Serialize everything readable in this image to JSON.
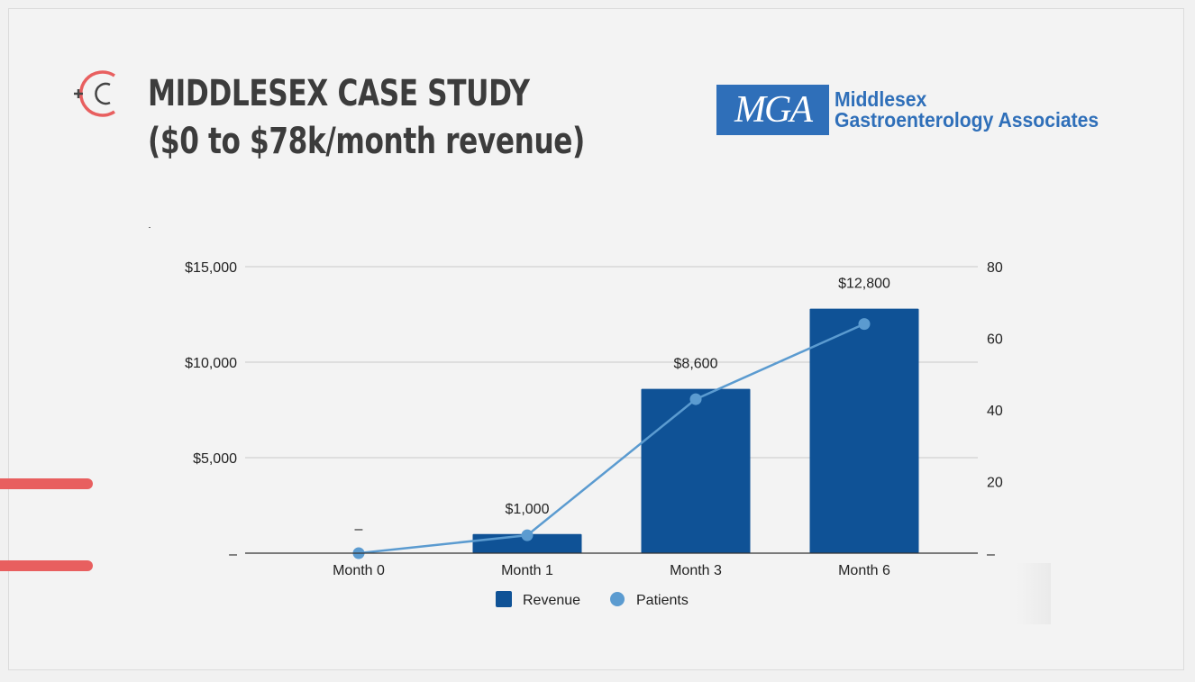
{
  "header": {
    "title_line1": "MIDDLESEX CASE STUDY",
    "title_line2": "($0 to $78k/month revenue)"
  },
  "partner_logo": {
    "mark": "MGA",
    "name_line1": "Middlesex",
    "name_line2": "Gastroenterology Associates",
    "color": "#2f6fb9"
  },
  "brand": {
    "icon": "plus-c-logo-icon",
    "accent_color": "#e85f5f"
  },
  "chart_data": {
    "type": "bar",
    "categories": [
      "Month 0",
      "Month 1",
      "Month 3",
      "Month 6"
    ],
    "series": [
      {
        "name": "Revenue",
        "type": "bar",
        "axis": "left",
        "values": [
          0,
          1000,
          8600,
          12800
        ],
        "data_labels": [
          "–",
          "$1,000",
          "$8,600",
          "$12,800"
        ],
        "color": "#0f5296"
      },
      {
        "name": "Patients",
        "type": "line",
        "axis": "right",
        "values": [
          0,
          5,
          43,
          64
        ],
        "color": "#5b9bd0"
      }
    ],
    "y_left": {
      "ylim": [
        0,
        15000
      ],
      "ticks": [
        0,
        5000,
        10000,
        15000
      ],
      "tick_labels": [
        "–",
        "$5,000",
        "$10,000",
        "$15,000"
      ]
    },
    "y_right": {
      "ylim": [
        0,
        80
      ],
      "ticks": [
        0,
        20,
        40,
        60,
        80
      ],
      "tick_labels": [
        "–",
        "20",
        "40",
        "60",
        "80"
      ]
    },
    "grid": true,
    "legend": "bottom-center"
  }
}
